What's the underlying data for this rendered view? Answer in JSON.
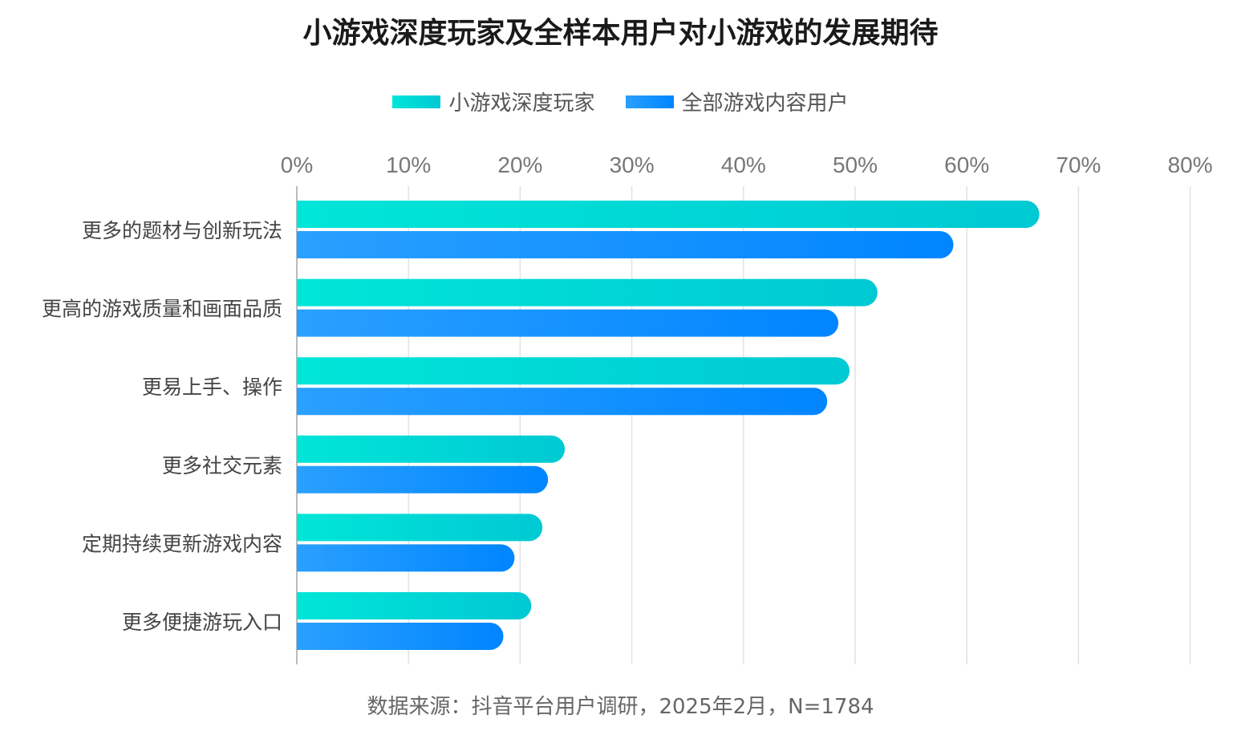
{
  "chart_data": {
    "type": "bar",
    "orientation": "horizontal",
    "title": "小游戏深度玩家及全样本用户对小游戏的发展期待",
    "categories": [
      "更多的题材与创新玩法",
      "更高的游戏质量和画面品质",
      "更易上手、操作",
      "更多社交元素",
      "定期持续更新游戏内容",
      "更多便捷游玩入口"
    ],
    "series": [
      {
        "name": "小游戏深度玩家",
        "values": [
          66.5,
          52.0,
          49.5,
          24.0,
          22.0,
          21.0
        ],
        "color_start": "#00e6d8",
        "color_end": "#00c9d4"
      },
      {
        "name": "全部游戏内容用户",
        "values": [
          58.8,
          48.5,
          47.5,
          22.5,
          19.5,
          18.5
        ],
        "color_start": "#2aa0ff",
        "color_end": "#0085ff"
      }
    ],
    "xlim": [
      0,
      80
    ],
    "xticks": [
      "0%",
      "10%",
      "20%",
      "30%",
      "40%",
      "50%",
      "60%",
      "70%",
      "80%"
    ],
    "grid": true,
    "legend_position": "top-center",
    "xaxis_position": "top"
  },
  "source_note": "数据来源：抖音平台用户调研，2025年2月，N=1784"
}
